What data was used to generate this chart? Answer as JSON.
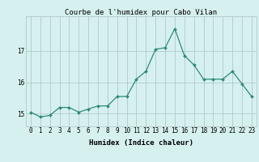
{
  "x": [
    0,
    1,
    2,
    3,
    4,
    5,
    6,
    7,
    8,
    9,
    10,
    11,
    12,
    13,
    14,
    15,
    16,
    17,
    18,
    19,
    20,
    21,
    22,
    23
  ],
  "y": [
    15.05,
    14.9,
    14.95,
    15.2,
    15.2,
    15.05,
    15.15,
    15.25,
    15.25,
    15.55,
    15.55,
    16.1,
    16.35,
    17.05,
    17.1,
    17.7,
    16.85,
    16.55,
    16.1,
    16.1,
    16.1,
    16.35,
    15.95,
    15.55
  ],
  "title": "Courbe de l'humidex pour Cabo Vilan",
  "xlabel": "Humidex (Indice chaleur)",
  "ylabel": "",
  "line_color": "#2e8b74",
  "marker": "D",
  "marker_size": 2.0,
  "bg_color": "#d6f0f0",
  "grid_color": "#b0c8c8",
  "yticks": [
    15,
    16,
    17
  ],
  "ylim": [
    14.6,
    18.1
  ],
  "xlim": [
    -0.5,
    23.5
  ],
  "xtick_labels": [
    "0",
    "1",
    "2",
    "3",
    "4",
    "5",
    "6",
    "7",
    "8",
    "9",
    "10",
    "11",
    "12",
    "13",
    "14",
    "15",
    "16",
    "17",
    "18",
    "19",
    "20",
    "21",
    "22",
    "23"
  ],
  "title_fontsize": 6.5,
  "axis_fontsize": 6.5,
  "tick_fontsize": 5.5
}
